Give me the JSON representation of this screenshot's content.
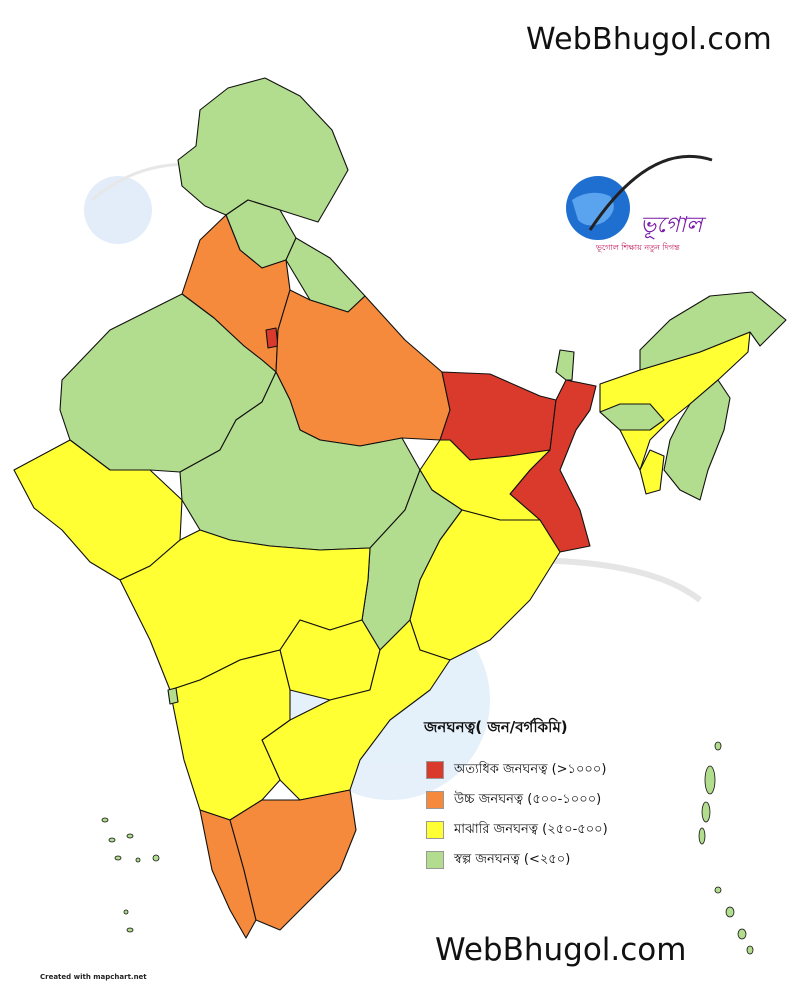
{
  "branding": {
    "site_top": "WebBhugol.com",
    "site_bottom": "WebBhugol.com",
    "credit": "Created with mapchart.net",
    "logo": {
      "name": "webbhugol-logo",
      "wordmark": "Web ভূগোল",
      "tagline": "ভূগোল শিক্ষায় নতুন দিগন্ত"
    }
  },
  "legend": {
    "title": "জনঘনত্ব( জন/বর্গকিমি)",
    "items": [
      {
        "label": "অত্যধিক জনঘনত্ব (>১০০০)",
        "color": "#d93a2b"
      },
      {
        "label": "উচ্চ জনঘনত্ব (৫০০-১০০০)",
        "color": "#f58a3c"
      },
      {
        "label": "মাঝারি জনঘনত্ব (২৫০-৫০০)",
        "color": "#ffff33"
      },
      {
        "label": "স্বল্প জনঘনত্ব (<২৫০)",
        "color": "#b3dd8e"
      }
    ]
  },
  "map_colors": {
    "very_high": "#d93a2b",
    "high": "#f58a3c",
    "medium": "#ffff33",
    "low": "#b3dd8e",
    "border": "#111111"
  }
}
